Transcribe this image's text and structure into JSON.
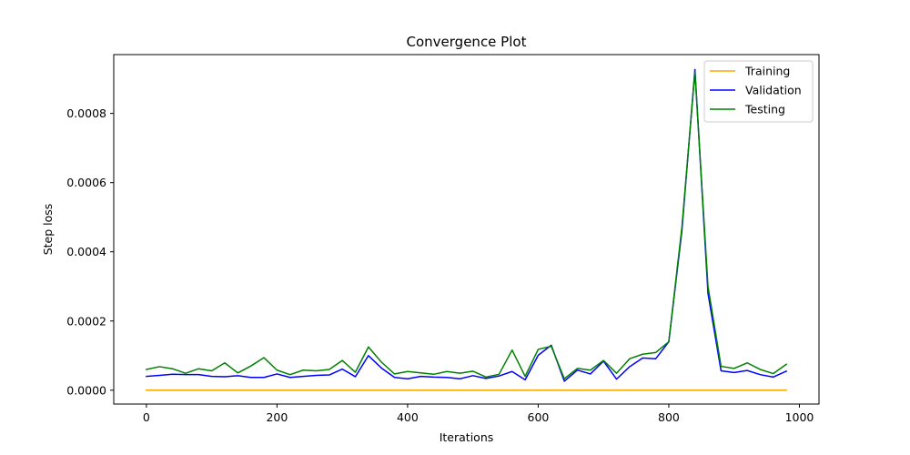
{
  "chart_data": {
    "type": "line",
    "title": "Convergence Plot",
    "xlabel": "Iterations",
    "ylabel": "Step loss",
    "xlim": [
      -50,
      1030
    ],
    "ylim": [
      -4e-05,
      0.00097
    ],
    "xticks": [
      0,
      200,
      400,
      600,
      800,
      1000
    ],
    "xtick_labels": [
      "0",
      "200",
      "400",
      "600",
      "800",
      "1000"
    ],
    "yticks": [
      0.0,
      0.0002,
      0.0004,
      0.0006,
      0.0008
    ],
    "ytick_labels": [
      "0.0000",
      "0.0002",
      "0.0004",
      "0.0006",
      "0.0008"
    ],
    "grid": false,
    "legend_position": "top-right",
    "x": [
      0,
      20,
      40,
      60,
      80,
      100,
      120,
      140,
      160,
      180,
      200,
      220,
      240,
      260,
      280,
      300,
      320,
      340,
      360,
      380,
      400,
      420,
      440,
      460,
      480,
      500,
      520,
      540,
      560,
      580,
      600,
      620,
      640,
      660,
      680,
      700,
      720,
      740,
      760,
      780,
      800,
      820,
      840,
      860,
      880,
      900,
      920,
      940,
      960,
      980
    ],
    "series": [
      {
        "name": "Training",
        "color": "#ffa500",
        "values": [
          0,
          0,
          0,
          0,
          0,
          0,
          0,
          0,
          0,
          0,
          0,
          0,
          0,
          0,
          0,
          0,
          0,
          0,
          0,
          0,
          0,
          0,
          0,
          0,
          0,
          0,
          0,
          0,
          0,
          0,
          0,
          0,
          0,
          0,
          0,
          0,
          0,
          0,
          0,
          0,
          0,
          0,
          0,
          0,
          0,
          0,
          0,
          0,
          0,
          0
        ]
      },
      {
        "name": "Validation",
        "color": "#0000ff",
        "values": [
          4e-05,
          4.3e-05,
          4.6e-05,
          4.5e-05,
          4.5e-05,
          4e-05,
          3.9e-05,
          4.2e-05,
          3.7e-05,
          3.7e-05,
          4.7e-05,
          3.7e-05,
          4e-05,
          4.3e-05,
          4.4e-05,
          6.1e-05,
          3.9e-05,
          0.0001,
          6.4e-05,
          3.7e-05,
          3.3e-05,
          4e-05,
          3.8e-05,
          3.7e-05,
          3.3e-05,
          4.2e-05,
          3.4e-05,
          4.1e-05,
          5.4e-05,
          3e-05,
          0.000101,
          0.00013,
          2.6e-05,
          5.8e-05,
          4.7e-05,
          8.4e-05,
          3.2e-05,
          6.8e-05,
          9.3e-05,
          9.1e-05,
          0.00014,
          0.00046,
          0.000927,
          0.00028,
          5.6e-05,
          5.1e-05,
          5.7e-05,
          4.5e-05,
          3.8e-05,
          5.5e-05
        ]
      },
      {
        "name": "Testing",
        "color": "#008000",
        "values": [
          6e-05,
          6.8e-05,
          6.2e-05,
          4.9e-05,
          6.2e-05,
          5.6e-05,
          7.9e-05,
          5e-05,
          7e-05,
          9.4e-05,
          5.8e-05,
          4.5e-05,
          5.8e-05,
          5.6e-05,
          6e-05,
          8.6e-05,
          5.2e-05,
          0.000125,
          8.1e-05,
          4.7e-05,
          5.4e-05,
          5e-05,
          4.6e-05,
          5.4e-05,
          4.9e-05,
          5.5e-05,
          3.8e-05,
          4.6e-05,
          0.000116,
          4e-05,
          0.000118,
          0.000127,
          3.3e-05,
          6.3e-05,
          5.8e-05,
          8.6e-05,
          4.9e-05,
          9.1e-05,
          0.000104,
          0.000109,
          0.00014,
          0.00047,
          0.00092,
          0.0003,
          6.9e-05,
          6.3e-05,
          7.9e-05,
          6e-05,
          4.8e-05,
          7.5e-05
        ]
      }
    ]
  }
}
